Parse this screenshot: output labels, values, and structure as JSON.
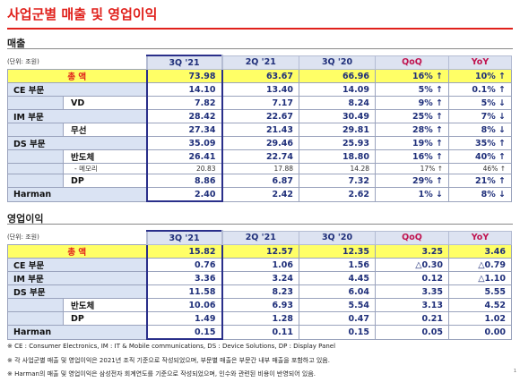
{
  "title": "사업군별 매출 및 영업이익",
  "sections": [
    {
      "heading": "매출",
      "unit": "(단위: 조원)",
      "columns": [
        "3Q '21",
        "2Q '21",
        "3Q '20",
        "QoQ",
        "YoY"
      ],
      "total": {
        "label": "총   액",
        "values": [
          "73.98",
          "63.67",
          "66.96",
          "16% ↑",
          "10% ↑"
        ]
      },
      "rows": [
        {
          "label": "CE 부문",
          "values": [
            "14.10",
            "13.40",
            "14.09",
            "5% ↑",
            "0.1% ↑"
          ],
          "children": [
            {
              "label": "VD",
              "values": [
                "7.82",
                "7.17",
                "8.24",
                "9% ↑",
                "5% ↓"
              ]
            }
          ]
        },
        {
          "label": "IM 부문",
          "values": [
            "28.42",
            "22.67",
            "30.49",
            "25% ↑",
            "7% ↓"
          ],
          "children": [
            {
              "label": "무선",
              "values": [
                "27.34",
                "21.43",
                "29.81",
                "28% ↑",
                "8% ↓"
              ]
            }
          ]
        },
        {
          "label": "DS 부문",
          "values": [
            "35.09",
            "29.46",
            "25.93",
            "19% ↑",
            "35% ↑"
          ],
          "children": [
            {
              "label": "반도체",
              "values": [
                "26.41",
                "22.74",
                "18.80",
                "16% ↑",
                "40% ↑"
              ],
              "children": [
                {
                  "label": "- 메모리",
                  "values": [
                    "20.83",
                    "17.88",
                    "14.28",
                    "17% ↑",
                    "46% ↑"
                  ]
                }
              ]
            },
            {
              "label": "DP",
              "values": [
                "8.86",
                "6.87",
                "7.32",
                "29% ↑",
                "21% ↑"
              ]
            }
          ]
        },
        {
          "label": "Harman",
          "values": [
            "2.40",
            "2.42",
            "2.62",
            "1% ↓",
            "8% ↓"
          ]
        }
      ]
    },
    {
      "heading": "영업이익",
      "unit": "(단위: 조원)",
      "columns": [
        "3Q '21",
        "2Q '21",
        "3Q '20",
        "QoQ",
        "YoY"
      ],
      "total": {
        "label": "총   액",
        "values": [
          "15.82",
          "12.57",
          "12.35",
          "3.25",
          "3.46"
        ]
      },
      "rows": [
        {
          "label": "CE 부문",
          "values": [
            "0.76",
            "1.06",
            "1.56",
            "△0.30",
            "△0.79"
          ]
        },
        {
          "label": "IM 부문",
          "values": [
            "3.36",
            "3.24",
            "4.45",
            "0.12",
            "△1.10"
          ]
        },
        {
          "label": "DS 부문",
          "values": [
            "11.58",
            "8.23",
            "6.04",
            "3.35",
            "5.55"
          ],
          "children": [
            {
              "label": "반도체",
              "values": [
                "10.06",
                "6.93",
                "5.54",
                "3.13",
                "4.52"
              ]
            },
            {
              "label": "DP",
              "values": [
                "1.49",
                "1.28",
                "0.47",
                "0.21",
                "1.02"
              ]
            }
          ]
        },
        {
          "label": "Harman",
          "values": [
            "0.15",
            "0.11",
            "0.15",
            "0.05",
            "0.00"
          ]
        }
      ]
    }
  ],
  "notes": [
    "※ CE : Consumer Electronics,  IM : IT & Mobile communications,  DS : Device Solutions,  DP : Display Panel",
    "※ 각 사업군별 매출 및 영업이익은 2021년 조직 기준으로 작성되었으며, 부문별 매출은 부문간 내부 매출을 포함하고 있음.",
    "※ Harman의 매출 및 영업이익은 삼성전자 회계연도를 기준으로 작성되었으며, 인수와 관련된 비용이 반영되어 있음."
  ],
  "page_number": "1"
}
